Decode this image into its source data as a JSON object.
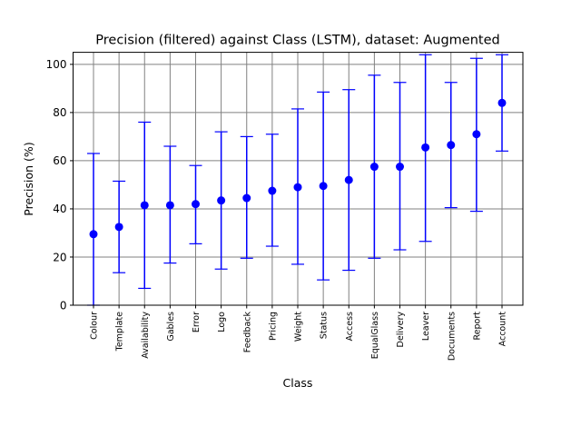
{
  "chart_data": {
    "type": "scatter",
    "title": "Precision (filtered) against Class (LSTM), dataset: Augmented",
    "xlabel": "Class",
    "ylabel": "Precision (%)",
    "ylim": [
      0,
      105
    ],
    "yticks": [
      "0",
      "20",
      "40",
      "60",
      "80",
      "100"
    ],
    "grid": true,
    "legend": "none",
    "colors": {
      "marker": "#0000ff",
      "errorbar": "#0000ff",
      "grid": "#808080"
    },
    "categories": [
      "Colour",
      "Template",
      "Availability",
      "Gables",
      "Error",
      "Logo",
      "Feedback",
      "Pricing",
      "Weight",
      "Status",
      "Access",
      "EqualGlass",
      "Delivery",
      "Leaver",
      "Documents",
      "Report",
      "Account"
    ],
    "series": [
      {
        "values": [
          29.5,
          32.5,
          41.5,
          41.5,
          42,
          43.5,
          44.5,
          47.5,
          49,
          49.5,
          52,
          57.5,
          57.5,
          65.5,
          66.5,
          71,
          84
        ],
        "lower": [
          0,
          13.5,
          7,
          17.5,
          25.5,
          15,
          19.5,
          24.5,
          17,
          10.5,
          14.5,
          19.5,
          23,
          26.5,
          40.5,
          39,
          64
        ],
        "upper": [
          63,
          51.5,
          76,
          66,
          58,
          72,
          70,
          71,
          81.5,
          88.5,
          89.5,
          95.5,
          92.5,
          104,
          92.5,
          102.5,
          104
        ]
      }
    ]
  }
}
